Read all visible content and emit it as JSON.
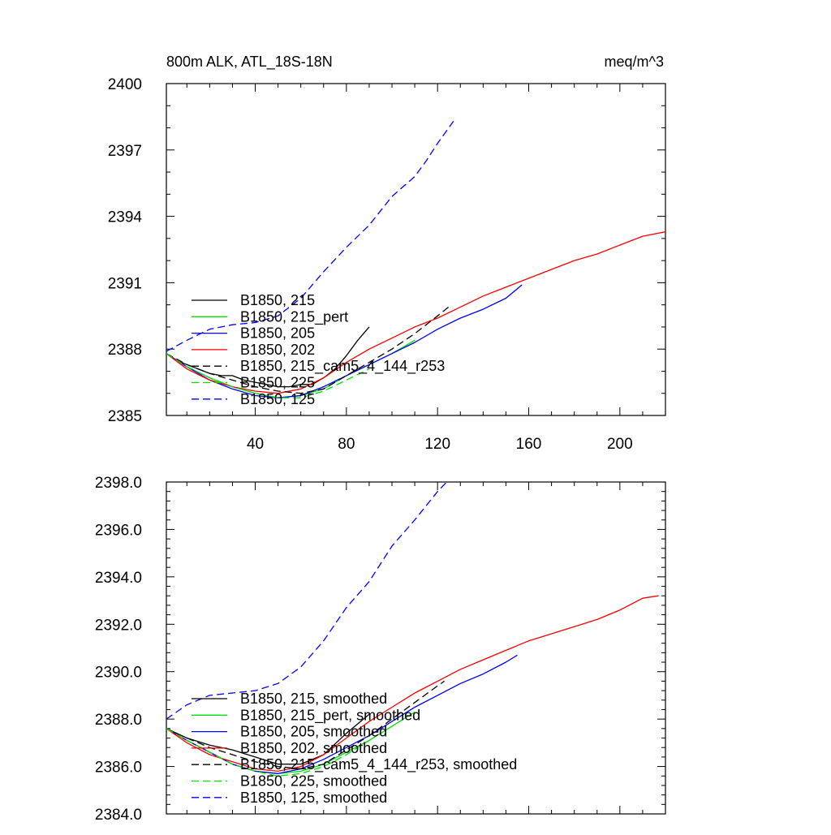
{
  "chart_data": [
    {
      "type": "line",
      "title": "800m ALK, ATL_18S-18N",
      "units": "meq/m^3",
      "xlim": [
        1,
        220
      ],
      "ylim": [
        2385,
        2400
      ],
      "x_ticks": [
        40,
        80,
        120,
        160,
        200
      ],
      "x_tick_labels": [
        "40",
        "80",
        "120",
        "160",
        "200"
      ],
      "y_ticks": [
        2385,
        2388,
        2391,
        2394,
        2397,
        2400
      ],
      "y_tick_labels": [
        "2385",
        "2388",
        "2391",
        "2394",
        "2397",
        "2400"
      ],
      "legend_position": "lower-left",
      "series": [
        {
          "name": "B1850, 215",
          "color": "#000000",
          "dash": "solid",
          "x": [
            1,
            5,
            10,
            15,
            20,
            25,
            30,
            35,
            40,
            45,
            50,
            55,
            60,
            65,
            70,
            75,
            80,
            85,
            90
          ],
          "y": [
            2387.8,
            2387.5,
            2387.3,
            2387.1,
            2386.9,
            2386.8,
            2386.8,
            2386.6,
            2386.5,
            2386.4,
            2386.3,
            2386.3,
            2386.4,
            2386.4,
            2386.7,
            2387.1,
            2387.7,
            2388.4,
            2389.0
          ]
        },
        {
          "name": "B1850, 215_pert",
          "color": "#00e000",
          "dash": "solid",
          "x": [
            1,
            10,
            20,
            30,
            40,
            50,
            60,
            70,
            80,
            90,
            100,
            110
          ],
          "y": [
            2387.8,
            2387.2,
            2386.7,
            2386.3,
            2386.0,
            2385.8,
            2385.9,
            2386.2,
            2386.8,
            2387.3,
            2387.8,
            2388.4
          ]
        },
        {
          "name": "B1850, 205",
          "color": "#0000ff",
          "dash": "solid",
          "x": [
            1,
            10,
            20,
            30,
            40,
            50,
            60,
            70,
            80,
            90,
            100,
            110,
            120,
            130,
            140,
            150,
            157
          ],
          "y": [
            2387.8,
            2387.2,
            2386.6,
            2386.2,
            2385.9,
            2385.8,
            2385.9,
            2386.3,
            2386.8,
            2387.3,
            2387.8,
            2388.3,
            2388.9,
            2389.4,
            2389.8,
            2390.3,
            2390.9
          ]
        },
        {
          "name": "B1850, 202",
          "color": "#ff0000",
          "dash": "solid",
          "x": [
            1,
            10,
            20,
            30,
            40,
            50,
            60,
            70,
            80,
            90,
            100,
            110,
            120,
            130,
            140,
            150,
            160,
            170,
            180,
            190,
            200,
            210,
            220
          ],
          "y": [
            2387.8,
            2387.1,
            2386.6,
            2386.3,
            2386.1,
            2386.0,
            2386.2,
            2386.7,
            2387.4,
            2388.0,
            2388.5,
            2389.0,
            2389.4,
            2389.9,
            2390.4,
            2390.8,
            2391.2,
            2391.6,
            2392.0,
            2392.3,
            2392.7,
            2393.1,
            2393.3
          ]
        },
        {
          "name": "B1850, 215_cam5_4_144_r253",
          "color": "#000000",
          "dash": "dashed",
          "x": [
            1,
            10,
            20,
            30,
            40,
            50,
            60,
            70,
            80,
            90,
            100,
            110,
            120,
            126
          ],
          "y": [
            2387.8,
            2387.3,
            2386.9,
            2386.6,
            2386.3,
            2386.1,
            2386.0,
            2386.2,
            2386.8,
            2387.4,
            2388.0,
            2388.7,
            2389.5,
            2390.0
          ]
        },
        {
          "name": "B1850, 225",
          "color": "#00e000",
          "dash": "dashed",
          "x": [
            1,
            10,
            20,
            30,
            40,
            50,
            60,
            70,
            80,
            90
          ],
          "y": [
            2387.8,
            2387.2,
            2386.7,
            2386.3,
            2386.0,
            2385.8,
            2385.8,
            2386.1,
            2386.6,
            2387.1
          ]
        },
        {
          "name": "B1850, 125",
          "color": "#0000ff",
          "dash": "dashed",
          "x": [
            1,
            10,
            20,
            30,
            40,
            50,
            60,
            70,
            80,
            90,
            100,
            110,
            115,
            120,
            127
          ],
          "y": [
            2387.9,
            2388.4,
            2388.9,
            2389.1,
            2389.2,
            2389.5,
            2390.3,
            2391.5,
            2392.6,
            2393.6,
            2394.9,
            2395.8,
            2396.5,
            2397.3,
            2398.3
          ]
        }
      ]
    },
    {
      "type": "line",
      "title": "",
      "xlim": [
        1,
        220
      ],
      "ylim": [
        2384,
        2398
      ],
      "x_ticks": [
        40,
        80,
        120,
        160,
        200
      ],
      "y_ticks": [
        2384,
        2386,
        2388,
        2390,
        2392,
        2394,
        2396,
        2398
      ],
      "y_tick_labels": [
        "2384.0",
        "2386.0",
        "2388.0",
        "2390.0",
        "2392.0",
        "2394.0",
        "2396.0",
        "2398.0"
      ],
      "legend_position": "lower-left",
      "series": [
        {
          "name": "B1850, 215, smoothed",
          "color": "#000000",
          "dash": "solid",
          "x": [
            1,
            10,
            20,
            30,
            40,
            50,
            60,
            70,
            80,
            90
          ],
          "y": [
            2387.6,
            2387.2,
            2386.9,
            2386.7,
            2386.4,
            2386.1,
            2386.1,
            2386.5,
            2387.4,
            2388.2
          ]
        },
        {
          "name": "B1850, 215_pert, smoothed",
          "color": "#00e000",
          "dash": "solid",
          "x": [
            1,
            10,
            20,
            30,
            40,
            50,
            60,
            70,
            80,
            90,
            100,
            110
          ],
          "y": [
            2387.6,
            2387.1,
            2386.6,
            2386.1,
            2385.8,
            2385.7,
            2385.8,
            2386.1,
            2386.6,
            2387.1,
            2387.7,
            2388.3
          ]
        },
        {
          "name": "B1850, 205, smoothed",
          "color": "#0000ff",
          "dash": "solid",
          "x": [
            1,
            10,
            20,
            30,
            40,
            50,
            60,
            70,
            80,
            90,
            100,
            110,
            120,
            130,
            140,
            150,
            155
          ],
          "y": [
            2387.6,
            2387.1,
            2386.6,
            2386.1,
            2385.8,
            2385.7,
            2385.9,
            2386.3,
            2386.8,
            2387.3,
            2387.9,
            2388.5,
            2389.0,
            2389.5,
            2389.9,
            2390.4,
            2390.7
          ]
        },
        {
          "name": "B1850, 202, smoothed",
          "color": "#ff0000",
          "dash": "solid",
          "x": [
            1,
            10,
            20,
            30,
            40,
            50,
            60,
            70,
            80,
            90,
            100,
            110,
            120,
            130,
            140,
            150,
            160,
            170,
            180,
            190,
            200,
            210,
            217
          ],
          "y": [
            2387.6,
            2387.0,
            2386.5,
            2386.2,
            2385.9,
            2385.8,
            2386.0,
            2386.5,
            2387.2,
            2387.9,
            2388.5,
            2389.1,
            2389.6,
            2390.1,
            2390.5,
            2390.9,
            2391.3,
            2391.6,
            2391.9,
            2392.2,
            2392.6,
            2393.1,
            2393.2
          ]
        },
        {
          "name": "B1850, 215_cam5_4_144_r253, smoothed",
          "color": "#000000",
          "dash": "dashed",
          "x": [
            1,
            10,
            20,
            30,
            40,
            50,
            60,
            70,
            80,
            90,
            100,
            110,
            120,
            123
          ],
          "y": [
            2387.6,
            2387.2,
            2386.8,
            2386.5,
            2386.2,
            2386.0,
            2385.9,
            2386.1,
            2386.7,
            2387.3,
            2388.0,
            2388.7,
            2389.4,
            2389.6
          ]
        },
        {
          "name": "B1850, 225, smoothed",
          "color": "#00e000",
          "dash": "dashed",
          "x": [
            1,
            10,
            20,
            30,
            40,
            50,
            60,
            70,
            80,
            90
          ],
          "y": [
            2387.6,
            2387.1,
            2386.6,
            2386.1,
            2385.8,
            2385.6,
            2385.7,
            2386.0,
            2386.5,
            2387.1
          ]
        },
        {
          "name": "B1850, 125, smoothed",
          "color": "#0000ff",
          "dash": "dashed",
          "x": [
            1,
            10,
            20,
            30,
            40,
            50,
            60,
            70,
            80,
            90,
            100,
            110,
            120,
            124
          ],
          "y": [
            2388.0,
            2388.6,
            2389.0,
            2389.1,
            2389.2,
            2389.5,
            2390.2,
            2391.3,
            2392.7,
            2393.8,
            2395.3,
            2396.4,
            2397.6,
            2398.0
          ]
        }
      ]
    }
  ]
}
